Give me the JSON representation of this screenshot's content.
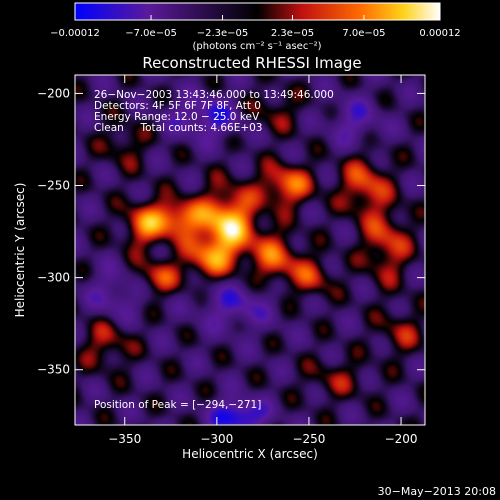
{
  "chart_data": {
    "type": "heatmap",
    "title": "Reconstructed RHESSI Image",
    "xlabel": "Heliocentric X (arcsec)",
    "ylabel": "Heliocentric Y (arcsec)",
    "xlim": [
      -377,
      -187
    ],
    "ylim": [
      -380,
      -190
    ],
    "x_ticks": [
      -350,
      -300,
      -250,
      -200
    ],
    "x_tick_labels": [
      "−350",
      "−300",
      "−250",
      "−200"
    ],
    "y_ticks": [
      -200,
      -250,
      -300,
      -350
    ],
    "y_tick_labels": [
      "−200",
      "−250",
      "−300",
      "−350"
    ],
    "colorbar": {
      "min": -0.00012,
      "max": 0.00012,
      "tick_values": [
        -0.00012,
        -7e-05,
        -2.3e-05,
        2.3e-05,
        7e-05,
        0.00012
      ],
      "tick_labels": [
        "−0.00012",
        "−7.0e−05",
        "−2.3e−05",
        "2.3e−05",
        "7.0e−05",
        "0.00012"
      ],
      "unit_label": "(photons cm⁻² s⁻¹ asec⁻²)",
      "colormap": [
        "#0000ff",
        "#5a1a9a",
        "#000000",
        "#c01010",
        "#ff6a00",
        "#ffd21a",
        "#ffffff"
      ]
    },
    "annotations": {
      "time": "26−Nov−2003 13:43:46.000 to 13:49:46.000",
      "detectors": "Detectors: 4F 5F 6F 7F 8F, Att 0",
      "energy": "Energy Range: 12.0 − 25.0 keV",
      "clean": "Clean     Total counts: 4.66E+03",
      "peak": "Position of Peak = [−294,−271]"
    },
    "peak": {
      "x": -294,
      "y": -271
    },
    "sources": [
      {
        "x": -294,
        "y": -271,
        "amp": 1.0,
        "sx": 11,
        "sy": 13
      },
      {
        "x": -305,
        "y": -290,
        "amp": 0.55,
        "sx": 10,
        "sy": 8
      },
      {
        "x": -322,
        "y": -268,
        "amp": 0.75,
        "sx": 10,
        "sy": 7
      },
      {
        "x": -340,
        "y": -272,
        "amp": 0.6,
        "sx": 8,
        "sy": 9
      },
      {
        "x": -332,
        "y": -300,
        "amp": 0.5,
        "sx": 9,
        "sy": 7
      },
      {
        "x": -262,
        "y": -250,
        "amp": 0.7,
        "sx": 10,
        "sy": 8
      },
      {
        "x": -268,
        "y": -290,
        "amp": 0.6,
        "sx": 9,
        "sy": 10
      },
      {
        "x": -248,
        "y": -300,
        "amp": 0.45,
        "sx": 8,
        "sy": 8
      },
      {
        "x": -220,
        "y": -250,
        "amp": 0.6,
        "sx": 9,
        "sy": 11
      },
      {
        "x": -208,
        "y": -282,
        "amp": 0.55,
        "sx": 9,
        "sy": 14
      },
      {
        "x": -360,
        "y": -335,
        "amp": 0.4,
        "sx": 10,
        "sy": 10
      },
      {
        "x": -200,
        "y": -330,
        "amp": 0.35,
        "sx": 9,
        "sy": 9
      },
      {
        "x": -270,
        "y": -210,
        "amp": 0.3,
        "sx": 12,
        "sy": 8
      },
      {
        "x": -350,
        "y": -228,
        "amp": 0.3,
        "sx": 9,
        "sy": 9
      },
      {
        "x": -235,
        "y": -355,
        "amp": 0.3,
        "sx": 12,
        "sy": 8
      },
      {
        "x": -290,
        "y": -315,
        "amp": -0.45,
        "sx": 14,
        "sy": 9
      },
      {
        "x": -305,
        "y": -213,
        "amp": -0.55,
        "sx": 14,
        "sy": 8
      },
      {
        "x": -288,
        "y": -375,
        "amp": -0.8,
        "sx": 10,
        "sy": 6
      },
      {
        "x": -355,
        "y": -310,
        "amp": -0.4,
        "sx": 10,
        "sy": 10
      },
      {
        "x": -225,
        "y": -215,
        "amp": -0.4,
        "sx": 10,
        "sy": 9
      }
    ]
  },
  "footer": {
    "date": "30−May−2013 20:08"
  }
}
